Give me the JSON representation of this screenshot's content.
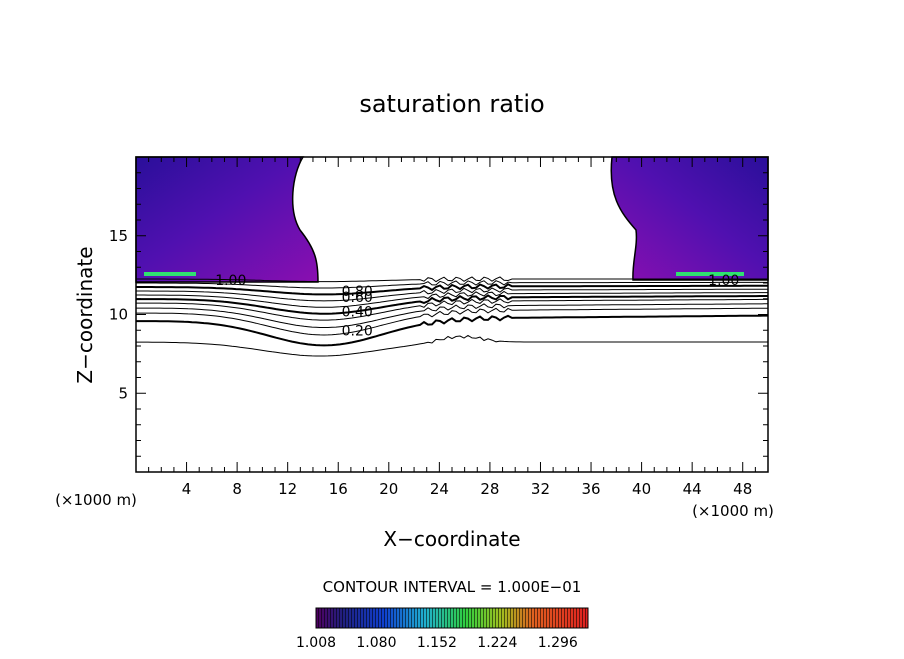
{
  "chart_data": {
    "type": "contour",
    "title": "saturation ratio",
    "xlabel": "X−coordinate",
    "ylabel": "Z−coordinate",
    "x_unit_label": "(×1000 m)",
    "xlim": [
      0,
      50
    ],
    "ylim": [
      0,
      20
    ],
    "x_ticks": [
      4,
      8,
      12,
      16,
      20,
      24,
      28,
      32,
      36,
      40,
      44,
      48
    ],
    "y_ticks": [
      5,
      10,
      15
    ],
    "contour_labels": [
      {
        "text": "1.00",
        "x": 7.5,
        "z": 12.2
      },
      {
        "text": "0.80",
        "x": 17.5,
        "z": 11.5
      },
      {
        "text": "0.60",
        "x": 17.5,
        "z": 11.1
      },
      {
        "text": "0.40",
        "x": 17.5,
        "z": 10.2
      },
      {
        "text": "0.20",
        "x": 17.5,
        "z": 9.0
      },
      {
        "text": "1.00",
        "x": 46.5,
        "z": 12.2
      }
    ],
    "contour_interval_text": "CONTOUR INTERVAL = 1.000E−01",
    "colorbar": {
      "min": 1.008,
      "max": 1.332,
      "tick_labels": [
        "1.008",
        "1.080",
        "1.152",
        "1.224",
        "1.296"
      ]
    }
  }
}
